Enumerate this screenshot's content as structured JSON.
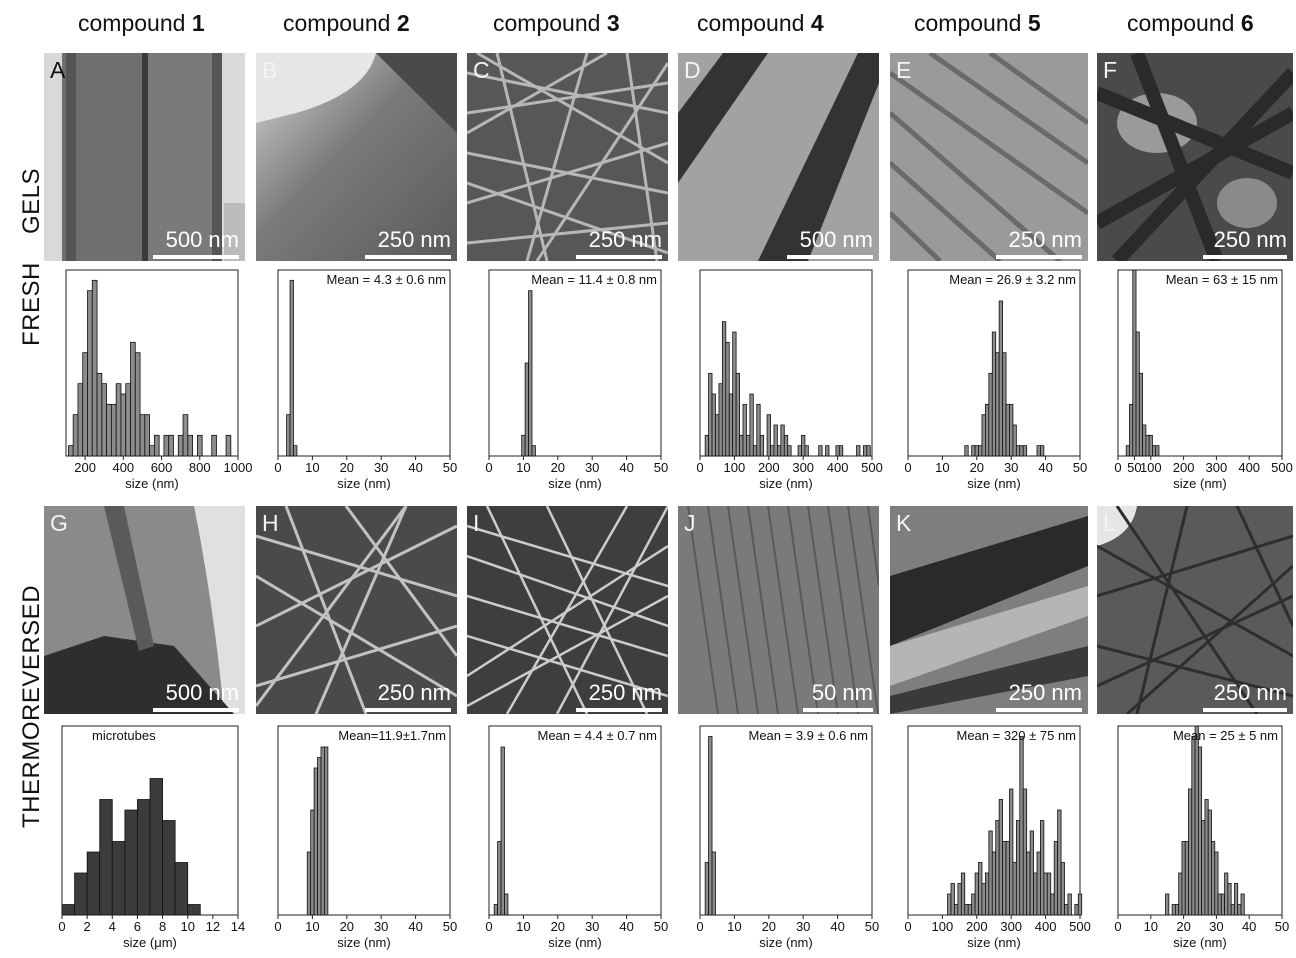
{
  "column_headers": [
    {
      "prefix": "compound ",
      "num": "1"
    },
    {
      "prefix": "compound ",
      "num": "2"
    },
    {
      "prefix": "compound ",
      "num": "3"
    },
    {
      "prefix": "compound ",
      "num": "4"
    },
    {
      "prefix": "compound ",
      "num": "5"
    },
    {
      "prefix": "compound ",
      "num": "6"
    }
  ],
  "row_headers": {
    "fresh_a": "GELS",
    "fresh_b": "FRESH",
    "thermo": "THERMOREVERSED"
  },
  "panels_top": [
    {
      "letter": "A",
      "scale": "500 nm"
    },
    {
      "letter": "B",
      "scale": "250 nm"
    },
    {
      "letter": "C",
      "scale": "250 nm"
    },
    {
      "letter": "D",
      "scale": "500 nm"
    },
    {
      "letter": "E",
      "scale": "250 nm"
    },
    {
      "letter": "F",
      "scale": "250 nm"
    }
  ],
  "panels_bottom": [
    {
      "letter": "G",
      "scale": "500 nm"
    },
    {
      "letter": "H",
      "scale": "250 nm"
    },
    {
      "letter": "I",
      "scale": "250 nm"
    },
    {
      "letter": "J",
      "scale": "50 nm"
    },
    {
      "letter": "K",
      "scale": "250 nm"
    },
    {
      "letter": "L",
      "scale": "250 nm"
    }
  ],
  "chart_data": [
    {
      "type": "bar",
      "id": "fresh-1",
      "xlabel": "size (nm)",
      "annotation": "",
      "xlim": [
        100,
        1000
      ],
      "xticks": [
        200,
        400,
        600,
        800,
        1000
      ],
      "ylim": [
        0,
        18
      ],
      "bin": 25,
      "x": [
        125,
        150,
        175,
        200,
        225,
        250,
        275,
        300,
        325,
        350,
        375,
        400,
        425,
        450,
        475,
        500,
        525,
        550,
        575,
        600,
        625,
        650,
        675,
        700,
        725,
        750,
        775,
        800,
        825,
        850,
        875,
        900,
        925,
        950,
        975,
        1000
      ],
      "values": [
        1,
        4,
        7,
        10,
        16,
        17,
        8,
        7,
        5,
        5,
        7,
        6,
        7,
        11,
        10,
        4,
        4,
        1,
        2,
        0,
        2,
        2,
        0,
        2,
        4,
        2,
        0,
        2,
        0,
        0,
        2,
        0,
        0,
        2,
        0,
        0
      ]
    },
    {
      "type": "bar",
      "id": "fresh-2",
      "xlabel": "size (nm)",
      "annotation": "Mean = 4.3 ± 0.6 nm",
      "xlim": [
        0,
        50
      ],
      "xticks": [
        0,
        10,
        20,
        30,
        40,
        50
      ],
      "ylim": [
        0,
        18
      ],
      "bin": 1,
      "x": [
        3,
        4,
        5
      ],
      "values": [
        4,
        17,
        1
      ]
    },
    {
      "type": "bar",
      "id": "fresh-3",
      "xlabel": "size (nm)",
      "annotation": "Mean = 11.4 ± 0.8 nm",
      "xlim": [
        0,
        50
      ],
      "xticks": [
        0,
        10,
        20,
        30,
        40,
        50
      ],
      "ylim": [
        0,
        18
      ],
      "bin": 1,
      "x": [
        10,
        11,
        12,
        13
      ],
      "values": [
        2,
        9,
        16,
        1
      ]
    },
    {
      "type": "bar",
      "id": "fresh-4",
      "xlabel": "size (nm)",
      "annotation": "",
      "xlim": [
        0,
        500
      ],
      "xticks": [
        0,
        100,
        200,
        300,
        400,
        500
      ],
      "ylim": [
        0,
        18
      ],
      "bin": 10,
      "x": [
        20,
        30,
        40,
        50,
        60,
        70,
        80,
        90,
        100,
        110,
        120,
        130,
        140,
        150,
        160,
        170,
        180,
        190,
        200,
        210,
        220,
        230,
        240,
        250,
        260,
        270,
        280,
        290,
        300,
        310,
        320,
        330,
        340,
        350,
        360,
        370,
        380,
        390,
        400,
        410,
        420,
        430,
        440,
        450,
        460,
        470,
        480,
        490
      ],
      "values": [
        2,
        8,
        6,
        4,
        7,
        13,
        11,
        6,
        12,
        8,
        2,
        5,
        2,
        6,
        1,
        5,
        2,
        0,
        4,
        1,
        3,
        1,
        3,
        2,
        1,
        0,
        0,
        1,
        2,
        1,
        0,
        0,
        0,
        1,
        0,
        1,
        0,
        0,
        1,
        1,
        0,
        0,
        0,
        0,
        1,
        0,
        1,
        1
      ]
    },
    {
      "type": "bar",
      "id": "fresh-5",
      "xlabel": "size (nm)",
      "annotation": "Mean = 26.9 ± 3.2 nm",
      "xlim": [
        0,
        50
      ],
      "xticks": [
        0,
        10,
        20,
        30,
        40,
        50
      ],
      "ylim": [
        0,
        18
      ],
      "bin": 1,
      "x": [
        17,
        18,
        19,
        20,
        21,
        22,
        23,
        24,
        25,
        26,
        27,
        28,
        29,
        30,
        31,
        32,
        33,
        34,
        38,
        39
      ],
      "values": [
        1,
        0,
        1,
        1,
        1,
        4,
        5,
        8,
        12,
        10,
        15,
        10,
        5,
        5,
        3,
        1,
        1,
        1,
        1,
        1
      ]
    },
    {
      "type": "bar",
      "id": "fresh-6",
      "xlabel": "size (nm)",
      "annotation": "Mean = 63 ± 15 nm",
      "xlim": [
        0,
        500
      ],
      "xticks": [
        0,
        50,
        100,
        200,
        300,
        400,
        500
      ],
      "ylim": [
        0,
        18
      ],
      "bin": 10,
      "x": [
        30,
        40,
        50,
        60,
        70,
        80,
        90,
        100,
        110,
        120
      ],
      "values": [
        1,
        5,
        18,
        12,
        8,
        3,
        2,
        2,
        1,
        1
      ]
    },
    {
      "type": "bar",
      "id": "thermo-1",
      "xlabel": "size (μm)",
      "annotation": "microtubes",
      "xlim": [
        0,
        14
      ],
      "xticks": [
        0,
        2,
        4,
        6,
        8,
        10,
        12,
        14
      ],
      "ylim": [
        0,
        18
      ],
      "bin": 1,
      "x": [
        0.5,
        1.5,
        2.5,
        3.5,
        4.5,
        5.5,
        6.5,
        7.5,
        8.5,
        9.5,
        10.5
      ],
      "values": [
        1,
        4,
        6,
        11,
        7,
        10,
        11,
        13,
        9,
        5,
        1
      ],
      "dark": true
    },
    {
      "type": "bar",
      "id": "thermo-2",
      "xlabel": "size (nm)",
      "annotation": "Mean=11.9±1.7nm",
      "xlim": [
        0,
        50
      ],
      "xticks": [
        0,
        10,
        20,
        30,
        40,
        50
      ],
      "ylim": [
        0,
        18
      ],
      "bin": 1,
      "x": [
        9,
        10,
        11,
        12,
        13,
        14
      ],
      "values": [
        6,
        10,
        14,
        15,
        16,
        16
      ]
    },
    {
      "type": "bar",
      "id": "thermo-3",
      "xlabel": "size (nm)",
      "annotation": "Mean = 4.4 ± 0.7 nm",
      "xlim": [
        0,
        50
      ],
      "xticks": [
        0,
        10,
        20,
        30,
        40,
        50
      ],
      "ylim": [
        0,
        18
      ],
      "bin": 1,
      "x": [
        2,
        3,
        4,
        5
      ],
      "values": [
        1,
        7,
        16,
        2
      ]
    },
    {
      "type": "bar",
      "id": "thermo-4",
      "xlabel": "size (nm)",
      "annotation": "Mean = 3.9 ± 0.6 nm",
      "xlim": [
        0,
        50
      ],
      "xticks": [
        0,
        10,
        20,
        30,
        40,
        50
      ],
      "ylim": [
        0,
        18
      ],
      "bin": 1,
      "x": [
        2,
        3,
        4
      ],
      "values": [
        5,
        17,
        6
      ]
    },
    {
      "type": "bar",
      "id": "thermo-5",
      "xlabel": "size (nm)",
      "annotation": "Mean = 320 ± 75 nm",
      "xlim": [
        0,
        500
      ],
      "xticks": [
        0,
        100,
        200,
        300,
        400,
        500
      ],
      "ylim": [
        0,
        18
      ],
      "bin": 10,
      "x": [
        120,
        130,
        140,
        150,
        160,
        170,
        180,
        190,
        200,
        210,
        220,
        230,
        240,
        250,
        260,
        270,
        280,
        290,
        300,
        310,
        320,
        330,
        340,
        350,
        360,
        370,
        380,
        390,
        400,
        410,
        420,
        430,
        440,
        450,
        460,
        470,
        480,
        490,
        500
      ],
      "values": [
        2,
        3,
        1,
        3,
        4,
        1,
        1,
        2,
        4,
        5,
        3,
        4,
        8,
        6,
        9,
        11,
        7,
        7,
        12,
        5,
        9,
        17,
        12,
        6,
        8,
        4,
        6,
        9,
        4,
        4,
        2,
        7,
        10,
        5,
        1,
        2,
        0,
        1,
        2
      ]
    },
    {
      "type": "bar",
      "id": "thermo-6",
      "xlabel": "size (nm)",
      "annotation": "Mean = 25 ± 5 nm",
      "xlim": [
        0,
        50
      ],
      "xticks": [
        0,
        10,
        20,
        30,
        40,
        50
      ],
      "ylim": [
        0,
        18
      ],
      "bin": 1,
      "x": [
        14,
        15,
        16,
        17,
        18,
        19,
        20,
        21,
        22,
        23,
        24,
        25,
        26,
        27,
        28,
        29,
        30,
        31,
        32,
        33,
        34,
        35,
        36,
        37,
        38
      ],
      "values": [
        0,
        2,
        0,
        1,
        1,
        4,
        7,
        7,
        12,
        17,
        18,
        16,
        9,
        11,
        10,
        7,
        6,
        2,
        2,
        4,
        3,
        1,
        3,
        1,
        2
      ]
    }
  ]
}
